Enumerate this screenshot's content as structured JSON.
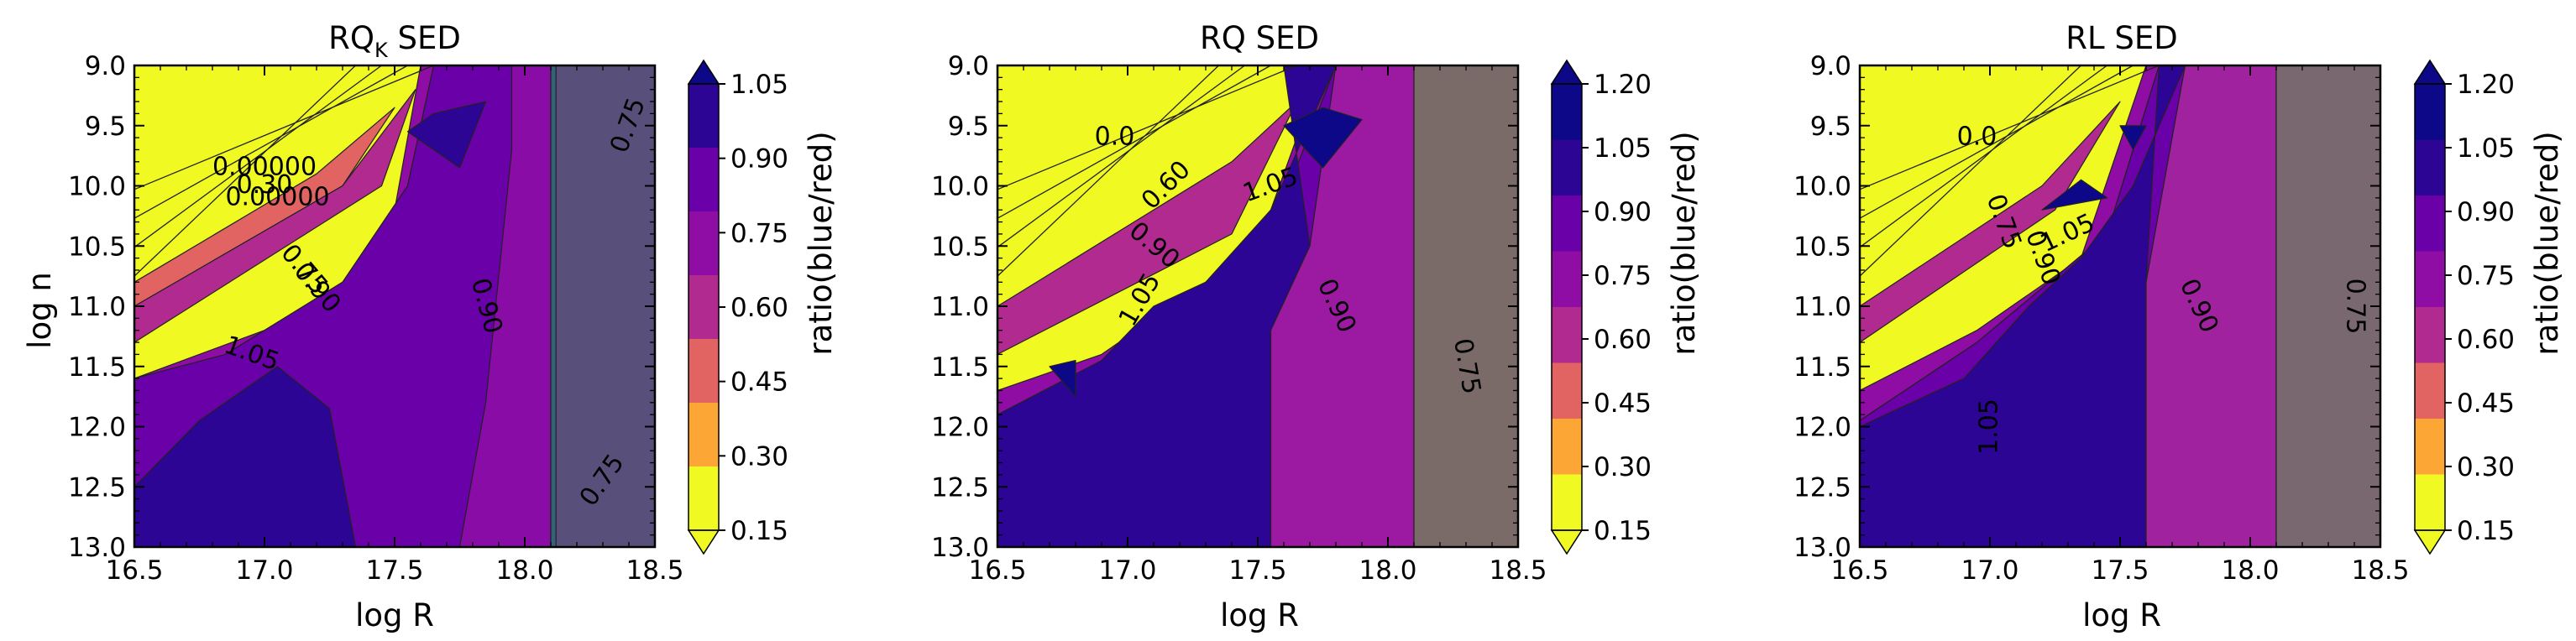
{
  "chart_data": [
    {
      "type": "contour",
      "title": "RQ",
      "title_subscript": "K",
      "title_suffix": " SED",
      "xlabel": "log R",
      "ylabel": "log n",
      "xlim": [
        16.5,
        18.5
      ],
      "ylim": [
        9.0,
        13.0
      ],
      "y_inverted": true,
      "xticks": [
        "16.5",
        "17.0",
        "17.5",
        "18.0",
        "18.5"
      ],
      "yticks": [
        "9.0",
        "9.5",
        "10.0",
        "10.5",
        "11.0",
        "11.5",
        "12.0",
        "12.5",
        "13.0"
      ],
      "shaded_region_x": [
        18.1,
        18.5
      ],
      "colorbar": {
        "label": "ratio(blue/red)",
        "ticks": [
          "0.15",
          "0.30",
          "0.45",
          "0.60",
          "0.75",
          "0.90",
          "1.05"
        ],
        "extend": "both",
        "colors": [
          "#f0f921",
          "#fca636",
          "#e16462",
          "#b12a90",
          "#8f0da4",
          "#6a00a8",
          "#2c0594"
        ]
      },
      "contour_labels": [
        {
          "text": "0.75",
          "x": 18.4,
          "y": 9.5,
          "angle": -70
        },
        {
          "text": "0.90",
          "x": 17.85,
          "y": 11.0,
          "angle": 75
        },
        {
          "text": "1.05",
          "x": 16.95,
          "y": 11.4,
          "angle": 20
        },
        {
          "text": "0.75",
          "x": 17.15,
          "y": 10.7,
          "angle": 50
        },
        {
          "text": "0.90",
          "x": 17.2,
          "y": 10.85,
          "angle": 50
        },
        {
          "text": "0.75",
          "x": 18.3,
          "y": 12.45,
          "angle": -55
        },
        {
          "text": "0.00000",
          "x": 17.0,
          "y": 9.85,
          "angle": 0
        },
        {
          "text": "0.30",
          "x": 17.0,
          "y": 10.0,
          "angle": 0
        },
        {
          "text": "0.00000",
          "x": 17.05,
          "y": 10.1,
          "angle": 0
        }
      ],
      "regions": [
        {
          "level_index": 2,
          "points": [
            [
              16.5,
              11.0
            ],
            [
              17.3,
              10.0
            ],
            [
              17.5,
              9.35
            ],
            [
              17.2,
              9.9
            ],
            [
              16.5,
              10.8
            ]
          ]
        },
        {
          "level_index": 3,
          "points": [
            [
              16.5,
              11.3
            ],
            [
              17.45,
              10.0
            ],
            [
              17.58,
              9.2
            ],
            [
              17.3,
              10.0
            ],
            [
              16.5,
              11.0
            ]
          ]
        },
        {
          "level_index": 4,
          "points": [
            [
              16.5,
              11.6
            ],
            [
              17.0,
              11.2
            ],
            [
              17.45,
              10.8
            ],
            [
              17.6,
              9.0
            ],
            [
              17.65,
              9.0
            ],
            [
              17.55,
              10.0
            ],
            [
              17.3,
              10.8
            ],
            [
              16.85,
              11.4
            ],
            [
              16.5,
              11.75
            ]
          ]
        },
        {
          "level_index": 5,
          "points": [
            [
              16.5,
              13.0
            ],
            [
              16.5,
              11.6
            ],
            [
              16.85,
              11.4
            ],
            [
              17.3,
              10.8
            ],
            [
              17.55,
              10.0
            ],
            [
              17.65,
              9.0
            ],
            [
              18.1,
              9.0
            ],
            [
              18.1,
              13.0
            ]
          ]
        },
        {
          "level_index": 5,
          "points": [
            [
              17.75,
              13.0
            ],
            [
              17.85,
              11.8
            ],
            [
              17.95,
              9.7
            ],
            [
              17.95,
              9.0
            ],
            [
              18.1,
              9.0
            ],
            [
              18.1,
              13.0
            ]
          ],
          "shade": "#8a0ca6"
        },
        {
          "level_index": 6,
          "points": [
            [
              16.5,
              13.0
            ],
            [
              16.5,
              12.5
            ],
            [
              16.75,
              11.95
            ],
            [
              17.05,
              11.5
            ],
            [
              17.25,
              11.85
            ],
            [
              17.35,
              13.0
            ]
          ]
        },
        {
          "level_index": 6,
          "points": [
            [
              17.55,
              9.55
            ],
            [
              17.65,
              9.4
            ],
            [
              17.85,
              9.3
            ],
            [
              17.75,
              9.85
            ]
          ]
        },
        {
          "level_index": 4,
          "points": [
            [
              18.1,
              9.0
            ],
            [
              18.5,
              9.0
            ],
            [
              18.5,
              13.0
            ],
            [
              18.1,
              13.0
            ]
          ],
          "shade": "#58507a"
        },
        {
          "level_index": 4,
          "points": [
            [
              18.1,
              9.0
            ],
            [
              18.12,
              9.0
            ],
            [
              18.12,
              13.0
            ],
            [
              18.1,
              13.0
            ]
          ],
          "shade": "#33607a"
        }
      ]
    },
    {
      "type": "contour",
      "title": "RQ SED",
      "title_subscript": "",
      "title_suffix": "",
      "xlabel": "log R",
      "ylabel": "",
      "xlim": [
        16.5,
        18.5
      ],
      "ylim": [
        9.0,
        13.0
      ],
      "y_inverted": true,
      "xticks": [
        "16.5",
        "17.0",
        "17.5",
        "18.0",
        "18.5"
      ],
      "yticks": [
        "9.0",
        "9.5",
        "10.0",
        "10.5",
        "11.0",
        "11.5",
        "12.0",
        "12.5",
        "13.0"
      ],
      "shaded_region_x": [
        18.1,
        18.5
      ],
      "colorbar": {
        "label": "ratio(blue/red)",
        "ticks": [
          "0.15",
          "0.30",
          "0.45",
          "0.60",
          "0.75",
          "0.90",
          "1.05",
          "1.20"
        ],
        "extend": "both",
        "colors": [
          "#f0f921",
          "#fca636",
          "#e16462",
          "#b12a90",
          "#8f0da4",
          "#6a00a8",
          "#2c0594",
          "#0d0887"
        ]
      },
      "contour_labels": [
        {
          "text": "1.05",
          "x": 17.55,
          "y": 10.0,
          "angle": -20
        },
        {
          "text": "0.60",
          "x": 17.15,
          "y": 10.0,
          "angle": -45
        },
        {
          "text": "0.90",
          "x": 17.1,
          "y": 10.5,
          "angle": 40
        },
        {
          "text": "1.05",
          "x": 17.05,
          "y": 10.95,
          "angle": -60
        },
        {
          "text": "0.90",
          "x": 17.8,
          "y": 11.0,
          "angle": 65
        },
        {
          "text": "0.75",
          "x": 18.3,
          "y": 11.5,
          "angle": 80
        },
        {
          "text": "0.0",
          "x": 16.95,
          "y": 9.6,
          "angle": 0
        }
      ],
      "regions": [
        {
          "level_index": 3,
          "points": [
            [
              16.5,
              11.4
            ],
            [
              17.4,
              10.4
            ],
            [
              17.65,
              9.3
            ],
            [
              17.4,
              9.8
            ],
            [
              16.5,
              11.0
            ]
          ]
        },
        {
          "level_index": 4,
          "points": [
            [
              16.5,
              11.7
            ],
            [
              16.9,
              11.4
            ],
            [
              17.5,
              10.5
            ],
            [
              17.75,
              9.0
            ],
            [
              17.8,
              9.0
            ],
            [
              17.55,
              10.4
            ],
            [
              17.05,
              11.3
            ],
            [
              16.5,
              11.95
            ]
          ]
        },
        {
          "level_index": 5,
          "points": [
            [
              16.5,
              13.0
            ],
            [
              16.5,
              11.95
            ],
            [
              17.05,
              11.3
            ],
            [
              17.55,
              10.4
            ],
            [
              17.8,
              9.0
            ],
            [
              18.1,
              9.0
            ],
            [
              18.1,
              13.0
            ]
          ]
        },
        {
          "level_index": 6,
          "points": [
            [
              16.5,
              13.0
            ],
            [
              16.5,
              11.9
            ],
            [
              16.9,
              11.45
            ],
            [
              17.1,
              11.0
            ],
            [
              17.3,
              10.8
            ],
            [
              17.55,
              10.2
            ],
            [
              17.8,
              9.0
            ],
            [
              17.6,
              9.0
            ],
            [
              17.7,
              10.5
            ],
            [
              17.55,
              11.2
            ],
            [
              17.55,
              13.0
            ]
          ]
        },
        {
          "level_index": 5,
          "points": [
            [
              17.55,
              13.0
            ],
            [
              17.55,
              11.2
            ],
            [
              17.7,
              10.5
            ],
            [
              17.8,
              9.0
            ],
            [
              18.1,
              9.0
            ],
            [
              18.1,
              13.0
            ]
          ],
          "shade": "#9b1aa1"
        },
        {
          "level_index": 7,
          "points": [
            [
              17.6,
              9.5
            ],
            [
              17.75,
              9.35
            ],
            [
              17.9,
              9.45
            ],
            [
              17.75,
              9.85
            ]
          ]
        },
        {
          "level_index": 7,
          "points": [
            [
              16.7,
              11.5
            ],
            [
              16.8,
              11.45
            ],
            [
              16.8,
              11.75
            ]
          ]
        },
        {
          "level_index": 4,
          "points": [
            [
              18.1,
              9.0
            ],
            [
              18.5,
              9.0
            ],
            [
              18.5,
              13.0
            ],
            [
              18.1,
              13.0
            ]
          ],
          "shade": "#7a6a68"
        }
      ]
    },
    {
      "type": "contour",
      "title": "RL SED",
      "title_subscript": "",
      "title_suffix": "",
      "xlabel": "log R",
      "ylabel": "",
      "xlim": [
        16.5,
        18.5
      ],
      "ylim": [
        9.0,
        13.0
      ],
      "y_inverted": true,
      "xticks": [
        "16.5",
        "17.0",
        "17.5",
        "18.0",
        "18.5"
      ],
      "yticks": [
        "9.0",
        "9.5",
        "10.0",
        "10.5",
        "11.0",
        "11.5",
        "12.0",
        "12.5",
        "13.0"
      ],
      "shaded_region_x": [
        18.1,
        18.5
      ],
      "colorbar": {
        "label": "ratio(blue/red)",
        "ticks": [
          "0.15",
          "0.30",
          "0.45",
          "0.60",
          "0.75",
          "0.90",
          "1.05",
          "1.20"
        ],
        "extend": "both",
        "colors": [
          "#f0f921",
          "#fca636",
          "#e16462",
          "#b12a90",
          "#8f0da4",
          "#6a00a8",
          "#2c0594",
          "#0d0887"
        ]
      },
      "contour_labels": [
        {
          "text": "0.90",
          "x": 17.2,
          "y": 10.6,
          "angle": 70
        },
        {
          "text": "1.05",
          "x": 17.3,
          "y": 10.4,
          "angle": -25
        },
        {
          "text": "0.75",
          "x": 17.05,
          "y": 10.3,
          "angle": 70
        },
        {
          "text": "1.05",
          "x": 17.0,
          "y": 12.0,
          "angle": -90
        },
        {
          "text": "0.90",
          "x": 17.8,
          "y": 11.0,
          "angle": 65
        },
        {
          "text": "0.75",
          "x": 18.4,
          "y": 11.0,
          "angle": 90
        },
        {
          "text": "0.0",
          "x": 16.95,
          "y": 9.6,
          "angle": 0
        }
      ],
      "regions": [
        {
          "level_index": 3,
          "points": [
            [
              16.5,
              11.3
            ],
            [
              17.25,
              10.2
            ],
            [
              17.5,
              9.3
            ],
            [
              17.2,
              10.0
            ],
            [
              16.5,
              11.0
            ]
          ]
        },
        {
          "level_index": 4,
          "points": [
            [
              16.5,
              11.7
            ],
            [
              16.95,
              11.2
            ],
            [
              17.35,
              10.6
            ],
            [
              17.6,
              9.0
            ],
            [
              17.65,
              9.0
            ],
            [
              17.45,
              10.4
            ],
            [
              16.95,
              11.3
            ],
            [
              16.5,
              11.95
            ]
          ]
        },
        {
          "level_index": 5,
          "points": [
            [
              16.5,
              13.0
            ],
            [
              16.5,
              11.95
            ],
            [
              16.95,
              11.3
            ],
            [
              17.45,
              10.4
            ],
            [
              17.65,
              9.0
            ],
            [
              18.1,
              9.0
            ],
            [
              18.1,
              13.0
            ]
          ]
        },
        {
          "level_index": 6,
          "points": [
            [
              16.5,
              13.0
            ],
            [
              16.5,
              12.0
            ],
            [
              16.9,
              11.6
            ],
            [
              17.15,
              11.0
            ],
            [
              17.35,
              10.6
            ],
            [
              17.55,
              10.0
            ],
            [
              17.75,
              9.0
            ],
            [
              17.65,
              9.0
            ],
            [
              17.6,
              10.8
            ],
            [
              17.6,
              13.0
            ]
          ]
        },
        {
          "level_index": 5,
          "points": [
            [
              17.6,
              13.0
            ],
            [
              17.6,
              10.8
            ],
            [
              17.75,
              9.0
            ],
            [
              18.1,
              9.0
            ],
            [
              18.1,
              13.0
            ]
          ],
          "shade": "#a0229e"
        },
        {
          "level_index": 7,
          "points": [
            [
              17.2,
              10.2
            ],
            [
              17.35,
              9.95
            ],
            [
              17.45,
              10.1
            ]
          ]
        },
        {
          "level_index": 7,
          "points": [
            [
              17.5,
              9.5
            ],
            [
              17.6,
              9.5
            ],
            [
              17.55,
              9.7
            ]
          ]
        },
        {
          "level_index": 4,
          "points": [
            [
              18.1,
              9.0
            ],
            [
              18.5,
              9.0
            ],
            [
              18.5,
              13.0
            ],
            [
              18.1,
              13.0
            ]
          ],
          "shade": "#796870"
        }
      ]
    }
  ]
}
